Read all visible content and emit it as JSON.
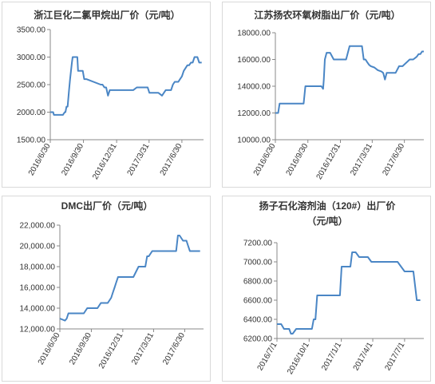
{
  "colors": {
    "line": "#4a86c5",
    "axis": "#888888",
    "grid": "#d9d9d9",
    "text": "#333333"
  },
  "chart_data": [
    {
      "type": "line",
      "title": "浙江巨化二氯甲烷出厂价（元/吨）",
      "title_lines": [
        "浙江巨化二氯甲烷出厂价（元/吨）"
      ],
      "ytick_labels": [
        "1500.00",
        "2000.00",
        "2500.00",
        "3000.00",
        "3500.00"
      ],
      "yticks": [
        1500,
        2000,
        2500,
        3000,
        3500
      ],
      "ylim": [
        1500,
        3500
      ],
      "xtick_labels": [
        "2016/6/30",
        "2016/9/30",
        "2016/12/31",
        "2017/3/31",
        "2017/6/30"
      ],
      "xticks": [
        0,
        92,
        184,
        274,
        365
      ],
      "xlim": [
        0,
        425
      ],
      "grid": false,
      "series": [
        {
          "x": [
            0,
            8,
            10,
            13,
            35,
            40,
            42,
            45,
            48,
            52,
            55,
            60,
            62,
            65,
            68,
            75,
            77,
            82,
            85,
            90,
            94,
            100,
            140,
            145,
            150,
            155,
            160,
            165,
            190,
            195,
            200,
            205,
            210,
            220,
            230,
            240,
            250,
            255,
            262,
            270,
            275,
            285,
            290,
            300,
            310,
            315,
            320,
            325,
            335,
            340,
            345,
            355,
            360,
            365,
            370,
            380,
            385,
            390,
            395,
            400,
            405,
            408,
            413,
            416,
            420
          ],
          "y": [
            2000,
            2000,
            1950,
            1950,
            1950,
            2000,
            2000,
            2100,
            2100,
            2400,
            2600,
            2900,
            3000,
            3000,
            3000,
            3000,
            2750,
            2750,
            2750,
            2750,
            2600,
            2600,
            2500,
            2500,
            2450,
            2450,
            2300,
            2400,
            2400,
            2400,
            2400,
            2400,
            2400,
            2400,
            2400,
            2450,
            2450,
            2450,
            2450,
            2450,
            2350,
            2350,
            2350,
            2350,
            2300,
            2350,
            2400,
            2400,
            2400,
            2500,
            2550,
            2550,
            2600,
            2650,
            2750,
            2850,
            2850,
            2900,
            2900,
            3000,
            3000,
            3000,
            2900,
            2900,
            2900
          ]
        }
      ]
    },
    {
      "type": "line",
      "title": "江苏扬农环氧树脂出厂价（元/吨）",
      "title_lines": [
        "江苏扬农环氧树脂出厂价（元/吨）"
      ],
      "ytick_labels": [
        "10000.00",
        "12000.00",
        "14000.00",
        "16000.00",
        "18000.00"
      ],
      "yticks": [
        10000,
        12000,
        14000,
        16000,
        18000
      ],
      "ylim": [
        10000,
        18000
      ],
      "xtick_labels": [
        "2016/6/30",
        "2016/9/30",
        "2016/12/31",
        "2017/3/31",
        "2017/6/30"
      ],
      "xticks": [
        0,
        92,
        184,
        274,
        365
      ],
      "xlim": [
        0,
        420
      ],
      "grid": false,
      "series": [
        {
          "x": [
            0,
            8,
            12,
            80,
            85,
            92,
            100,
            120,
            130,
            135,
            137,
            140,
            145,
            150,
            155,
            165,
            170,
            180,
            190,
            200,
            210,
            215,
            220,
            225,
            230,
            245,
            250,
            255,
            260,
            265,
            270,
            280,
            290,
            300,
            305,
            310,
            315,
            320,
            330,
            340,
            350,
            360,
            380,
            390,
            400,
            405,
            410,
            415,
            420
          ],
          "y": [
            12000,
            12000,
            12700,
            12700,
            14000,
            14000,
            14000,
            14000,
            14000,
            13800,
            14500,
            16000,
            16500,
            16500,
            16500,
            16000,
            16000,
            16000,
            16000,
            16000,
            17000,
            17000,
            17000,
            17000,
            17000,
            17000,
            16000,
            16000,
            15800,
            15600,
            15500,
            15400,
            15200,
            15100,
            15000,
            14500,
            15000,
            15000,
            15000,
            15000,
            15500,
            15500,
            16000,
            16000,
            16200,
            16400,
            16400,
            16600,
            16600
          ]
        }
      ]
    },
    {
      "type": "line",
      "title": "DMC出厂价（元/吨）",
      "title_lines": [
        "DMC出厂价（元/吨）"
      ],
      "ytick_labels": [
        "12,000.00",
        "14,000.00",
        "16,000.00",
        "18,000.00",
        "20,000.00",
        "22,000.00"
      ],
      "yticks": [
        12000,
        14000,
        16000,
        18000,
        20000,
        22000
      ],
      "ylim": [
        12000,
        22000
      ],
      "xtick_labels": [
        "2016/6/30",
        "2016/9/30",
        "2016/12/31",
        "2017/3/31",
        "2017/6/30"
      ],
      "xticks": [
        0,
        92,
        184,
        274,
        365
      ],
      "xlim": [
        0,
        420
      ],
      "grid": false,
      "series": [
        {
          "x": [
            0,
            15,
            20,
            25,
            30,
            40,
            50,
            60,
            70,
            80,
            90,
            100,
            110,
            120,
            130,
            140,
            150,
            155,
            160,
            165,
            170,
            175,
            180,
            185,
            190,
            200,
            215,
            230,
            245,
            250,
            255,
            260,
            270,
            280,
            290,
            300,
            310,
            320,
            330,
            340,
            345,
            350,
            360,
            365,
            370,
            375,
            380,
            385,
            395,
            410
          ],
          "y": [
            13000,
            12800,
            13000,
            13500,
            13500,
            13500,
            13500,
            13500,
            13500,
            14000,
            14000,
            14000,
            14000,
            14500,
            14500,
            14500,
            15000,
            15500,
            16000,
            16500,
            17000,
            17000,
            17000,
            17000,
            17000,
            17000,
            17000,
            18000,
            18000,
            18000,
            19000,
            19000,
            19500,
            19500,
            19500,
            19500,
            19500,
            19500,
            19500,
            19500,
            21000,
            21000,
            20500,
            20500,
            20500,
            20000,
            19500,
            19500,
            19500,
            19500
          ]
        }
      ]
    },
    {
      "type": "line",
      "title": "扬子石化溶剂油（120#）出厂价（元/吨）",
      "title_lines": [
        "扬子石化溶剂油（120#）出厂价",
        "（元/吨）"
      ],
      "ytick_labels": [
        "6200.00",
        "6400.00",
        "6600.00",
        "6800.00",
        "7000.00",
        "7200.00"
      ],
      "yticks": [
        6200,
        6400,
        6600,
        6800,
        7000,
        7200
      ],
      "ylim": [
        6200,
        7200
      ],
      "xtick_labels": [
        "2016/7/1",
        "2016/10/1",
        "2017/1/1",
        "2017/4/1",
        "2017/7/1"
      ],
      "xticks": [
        0,
        92,
        184,
        274,
        365
      ],
      "xlim": [
        0,
        420
      ],
      "grid": false,
      "series": [
        {
          "x": [
            0,
            12,
            20,
            30,
            35,
            40,
            45,
            55,
            60,
            80,
            100,
            105,
            110,
            115,
            120,
            130,
            140,
            150,
            160,
            180,
            185,
            195,
            205,
            210,
            215,
            225,
            235,
            250,
            260,
            270,
            290,
            310,
            320,
            330,
            345,
            365,
            375,
            385,
            390,
            400,
            410
          ],
          "y": [
            6350,
            6350,
            6300,
            6300,
            6300,
            6250,
            6250,
            6300,
            6300,
            6300,
            6300,
            6400,
            6400,
            6650,
            6650,
            6650,
            6650,
            6650,
            6650,
            6650,
            6950,
            6950,
            6950,
            6950,
            7100,
            7100,
            7050,
            7050,
            7050,
            7000,
            7000,
            7000,
            7000,
            7000,
            7000,
            6900,
            6900,
            6900,
            6900,
            6600,
            6600
          ]
        }
      ]
    }
  ]
}
